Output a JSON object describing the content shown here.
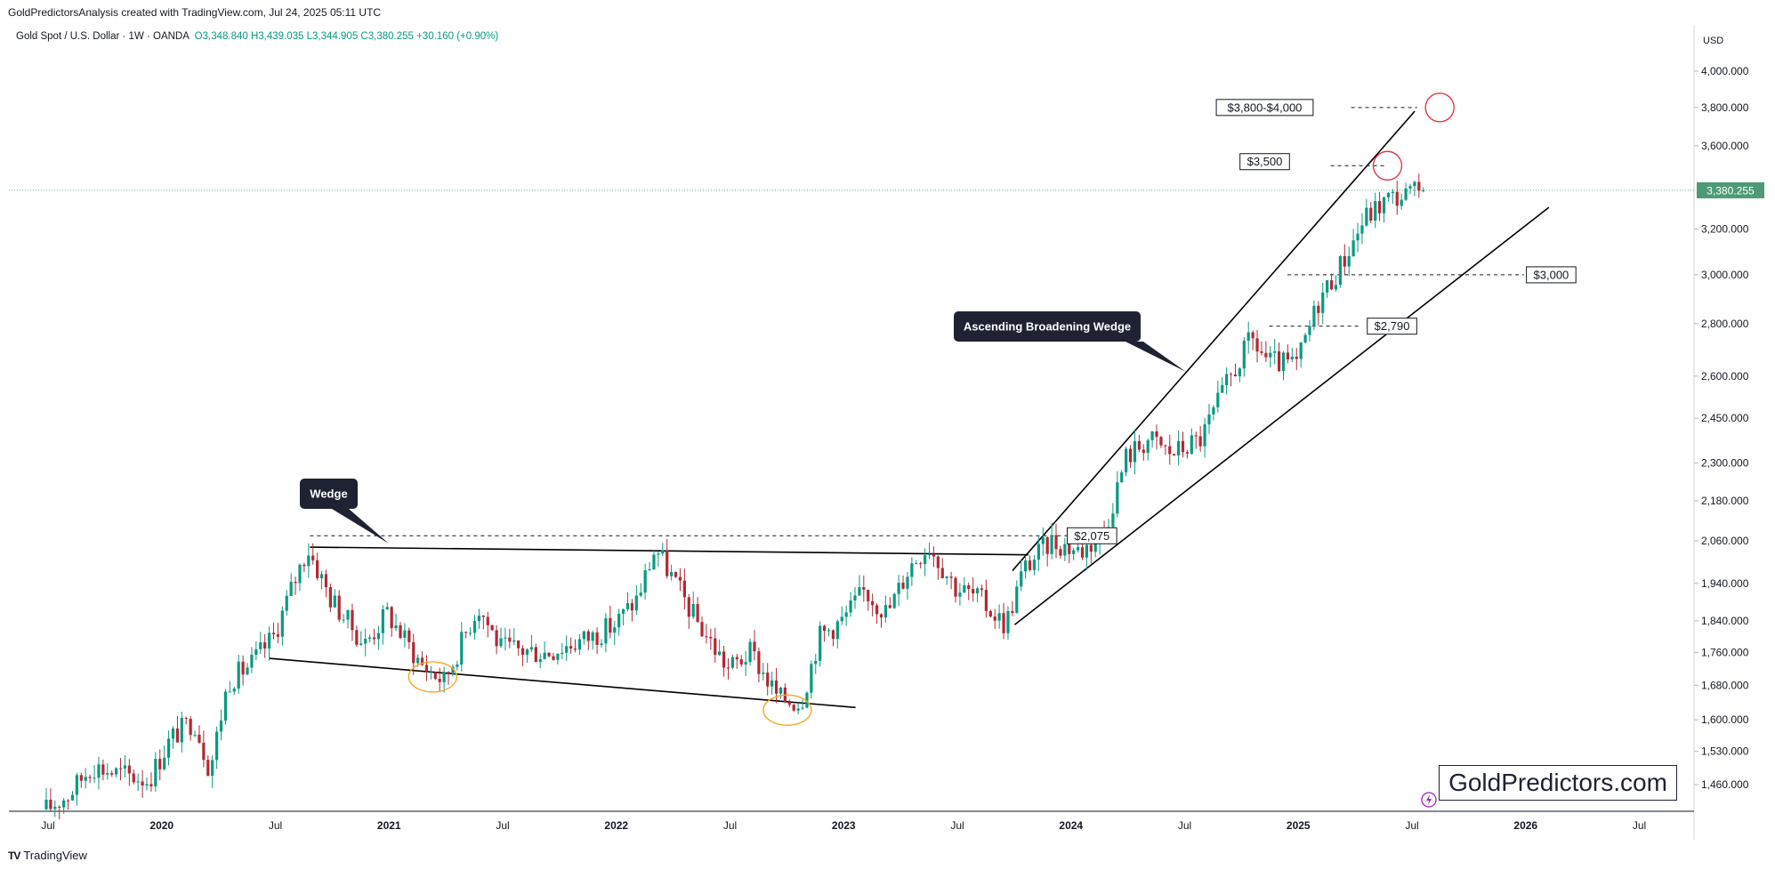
{
  "header": {
    "credit": "GoldPredictorsAnalysis created with TradingView.com, Jul 24, 2025 05:11 UTC",
    "symbol": "Gold Spot / U.S. Dollar · 1W · OANDA",
    "open": "O3,348.840",
    "high": "H3,439.035",
    "low": "L3,344.905",
    "close": "C3,380.255",
    "change": "+30.160 (+0.90%)"
  },
  "price_axis": {
    "currency": "USD",
    "last_price_label": "3,380.255"
  },
  "footer": {
    "brand": "TradingView",
    "brand_mark": "TV"
  },
  "watermark": "GoldPredictors.com",
  "colors": {
    "up": "#089981",
    "down": "#b22833",
    "last_price_badge": "#4e9a76",
    "callout_bg": "#1e2233",
    "circle_red": "#e0394a",
    "circle_orange": "#f5a623"
  },
  "chart_data": {
    "type": "candlestick",
    "title": "Gold Spot / U.S. Dollar · 1W · OANDA",
    "y_scale": "log",
    "ylim": [
      1400,
      4150
    ],
    "x_tick_labels": [
      "Jul",
      "2020",
      "Jul",
      "2021",
      "Jul",
      "2022",
      "Jul",
      "2023",
      "Jul",
      "2024",
      "Jul",
      "2025",
      "Jul",
      "2026",
      "Jul"
    ],
    "y_tick_labels": [
      "4,000.000",
      "3,800.000",
      "3,600.000",
      "3,200.000",
      "3,000.000",
      "2,800.000",
      "2,600.000",
      "2,450.000",
      "2,300.000",
      "2,180.000",
      "2,060.000",
      "1,940.000",
      "1,840.000",
      "1,760.000",
      "1,680.000",
      "1,600.000",
      "1,530.000",
      "1,460.000"
    ],
    "y_tick_values": [
      4000,
      3800,
      3600,
      3200,
      3000,
      2800,
      2600,
      2450,
      2300,
      2180,
      2060,
      1940,
      1840,
      1760,
      1680,
      1600,
      1530,
      1460
    ],
    "price_path_closes": [
      [
        2019.5,
        1410
      ],
      [
        2019.6,
        1440
      ],
      [
        2019.7,
        1500
      ],
      [
        2019.8,
        1485
      ],
      [
        2019.95,
        1470
      ],
      [
        2020.05,
        1560
      ],
      [
        2020.15,
        1600
      ],
      [
        2020.22,
        1490
      ],
      [
        2020.3,
        1690
      ],
      [
        2020.4,
        1730
      ],
      [
        2020.5,
        1800
      ],
      [
        2020.6,
        1960
      ],
      [
        2020.65,
        2040
      ],
      [
        2020.75,
        1900
      ],
      [
        2020.9,
        1780
      ],
      [
        2021.0,
        1860
      ],
      [
        2021.15,
        1730
      ],
      [
        2021.25,
        1690
      ],
      [
        2021.4,
        1880
      ],
      [
        2021.5,
        1770
      ],
      [
        2021.7,
        1760
      ],
      [
        2021.9,
        1800
      ],
      [
        2022.0,
        1830
      ],
      [
        2022.1,
        1900
      ],
      [
        2022.18,
        2040
      ],
      [
        2022.35,
        1850
      ],
      [
        2022.5,
        1720
      ],
      [
        2022.6,
        1760
      ],
      [
        2022.72,
        1650
      ],
      [
        2022.82,
        1640
      ],
      [
        2022.9,
        1800
      ],
      [
        2023.0,
        1840
      ],
      [
        2023.1,
        1920
      ],
      [
        2023.2,
        1860
      ],
      [
        2023.3,
        1990
      ],
      [
        2023.38,
        2050
      ],
      [
        2023.5,
        1930
      ],
      [
        2023.6,
        1900
      ],
      [
        2023.72,
        1830
      ],
      [
        2023.8,
        1980
      ],
      [
        2023.92,
        2060
      ],
      [
        2024.05,
        2030
      ],
      [
        2024.15,
        2080
      ],
      [
        2024.25,
        2320
      ],
      [
        2024.35,
        2380
      ],
      [
        2024.45,
        2330
      ],
      [
        2024.58,
        2380
      ],
      [
        2024.7,
        2580
      ],
      [
        2024.8,
        2740
      ],
      [
        2024.88,
        2650
      ],
      [
        2025.0,
        2640
      ],
      [
        2025.1,
        2900
      ],
      [
        2025.2,
        3050
      ],
      [
        2025.3,
        3250
      ],
      [
        2025.4,
        3340
      ],
      [
        2025.5,
        3360
      ],
      [
        2025.56,
        3380.255
      ]
    ],
    "last_price": 3380.255,
    "annotations": [
      {
        "type": "callout",
        "text": "Wedge"
      },
      {
        "type": "callout",
        "text": "Ascending Broadening Wedge"
      },
      {
        "type": "level_label",
        "text": "$2,075",
        "value": 2075
      },
      {
        "type": "level_label",
        "text": "$2,790",
        "value": 2790
      },
      {
        "type": "level_label",
        "text": "$3,000",
        "value": 3000
      },
      {
        "type": "level_label",
        "text": "$3,500",
        "value": 3500
      },
      {
        "type": "level_label",
        "text": "$3,800-$4,000",
        "value": 3800
      }
    ],
    "trendlines": [
      {
        "name": "wedge-upper",
        "from": [
          2020.66,
          2042
        ],
        "to": [
          2023.82,
          2020
        ]
      },
      {
        "name": "wedge-lower",
        "from": [
          2020.48,
          1745
        ],
        "to": [
          2023.06,
          1628
        ]
      },
      {
        "name": "broadening-upper",
        "from": [
          2023.75,
          1975
        ],
        "to": [
          2025.52,
          3780
        ]
      },
      {
        "name": "broadening-lower",
        "from": [
          2023.76,
          1830
        ],
        "to": [
          2026.11,
          3300
        ]
      }
    ]
  }
}
